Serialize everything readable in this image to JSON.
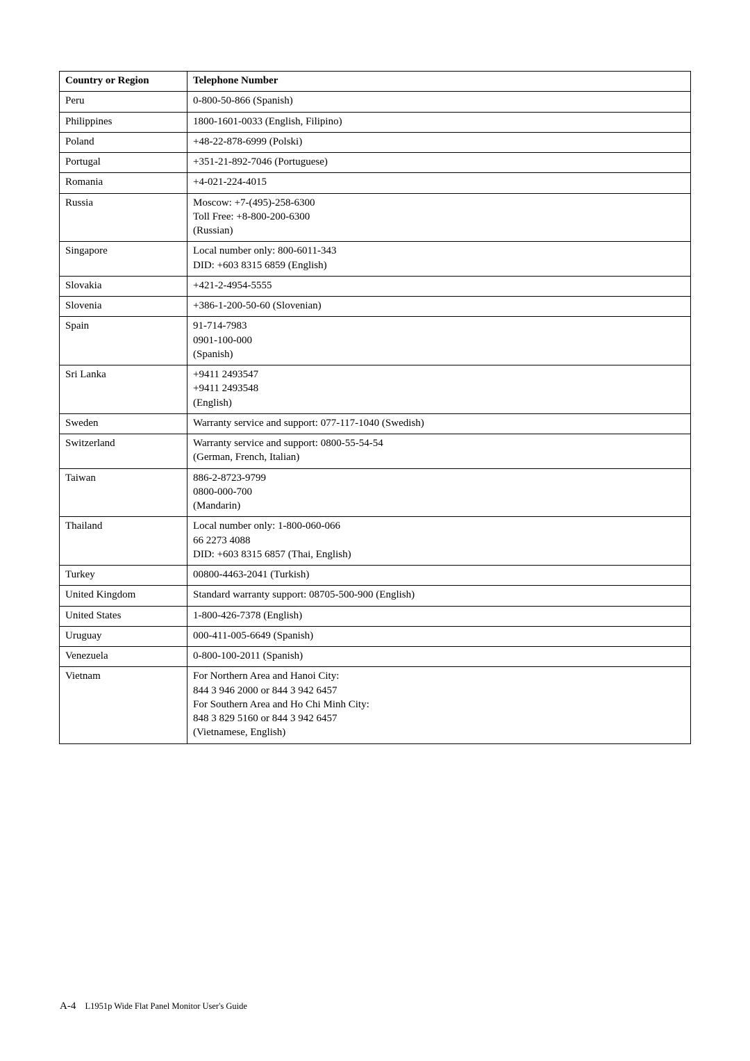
{
  "table": {
    "header": {
      "col1": "Country or Region",
      "col2": "Telephone Number"
    },
    "rows": [
      {
        "c": "Peru",
        "t": "0-800-50-866 (Spanish)"
      },
      {
        "c": "Philippines",
        "t": "1800-1601-0033 (English, Filipino)"
      },
      {
        "c": "Poland",
        "t": "+48-22-878-6999 (Polski)"
      },
      {
        "c": "Portugal",
        "t": "+351-21-892-7046 (Portuguese)"
      },
      {
        "c": "Romania",
        "t": "+4-021-224-4015"
      },
      {
        "c": "Russia",
        "t": "Moscow: +7-(495)-258-6300\nToll Free: +8-800-200-6300\n(Russian)"
      },
      {
        "c": "Singapore",
        "t": "Local number only: 800-6011-343\nDID: +603 8315 6859 (English)"
      },
      {
        "c": "Slovakia",
        "t": "+421-2-4954-5555"
      },
      {
        "c": "Slovenia",
        "t": "+386-1-200-50-60 (Slovenian)"
      },
      {
        "c": "Spain",
        "t": "91-714-7983\n0901-100-000\n(Spanish)"
      },
      {
        "c": "Sri Lanka",
        "t": "+9411 2493547\n+9411 2493548\n(English)"
      },
      {
        "c": "Sweden",
        "t": "Warranty service and support: 077-117-1040 (Swedish)"
      },
      {
        "c": "Switzerland",
        "t": "Warranty service and support: 0800-55-54-54\n(German, French, Italian)"
      },
      {
        "c": "Taiwan",
        "t": "886-2-8723-9799\n0800-000-700\n(Mandarin)"
      },
      {
        "c": "Thailand",
        "t": "Local number only: 1-800-060-066\n66 2273 4088\nDID: +603 8315 6857 (Thai, English)"
      },
      {
        "c": "Turkey",
        "t": "00800-4463-2041 (Turkish)"
      },
      {
        "c": "United Kingdom",
        "t": "Standard warranty support: 08705-500-900 (English)"
      },
      {
        "c": "United States",
        "t": "1-800-426-7378 (English)"
      },
      {
        "c": "Uruguay",
        "t": "000-411-005-6649 (Spanish)"
      },
      {
        "c": "Venezuela",
        "t": "0-800-100-2011 (Spanish)"
      },
      {
        "c": "Vietnam",
        "t": "For Northern Area and Hanoi City:\n844 3 946 2000 or 844 3 942 6457\nFor Southern Area and Ho Chi Minh City:\n848 3 829 5160 or 844 3 942 6457\n(Vietnamese, English)"
      }
    ]
  },
  "footer": {
    "page": "A-4",
    "title": "L1951p Wide Flat Panel Monitor User's Guide"
  }
}
